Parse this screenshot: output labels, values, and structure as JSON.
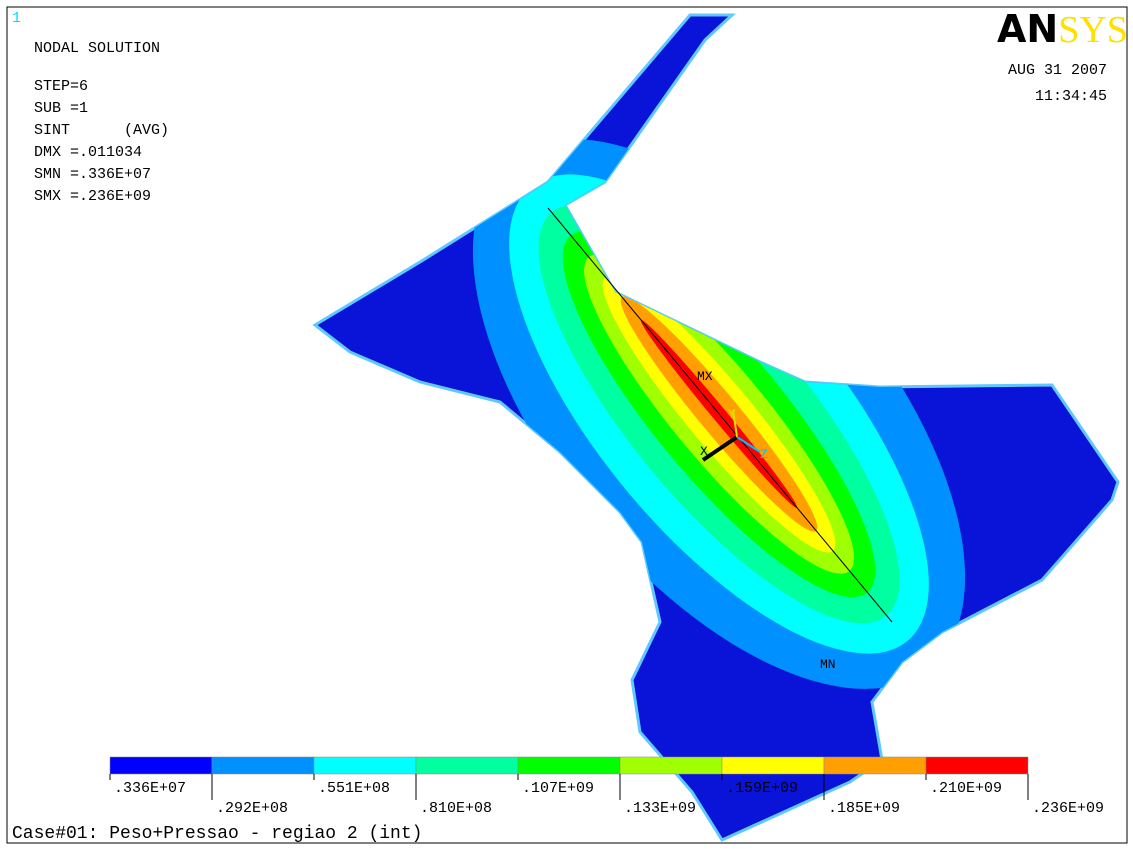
{
  "window_number": "1",
  "header": {
    "title": "NODAL SOLUTION",
    "lines": [
      "STEP=6",
      "SUB =1",
      "SINT      (AVG)",
      "DMX =.011034",
      "SMN =.336E+07",
      "SMX =.236E+09"
    ]
  },
  "logo": {
    "prefix": "AN",
    "suffix": "SYS"
  },
  "date": "AUG 31 2007",
  "time": "11:34:45",
  "markers": {
    "max": "MX",
    "min": "MN"
  },
  "triad": {
    "x": "X",
    "y": "Y",
    "z": "Z"
  },
  "legend": {
    "colors": [
      "#0000ff",
      "#0090ff",
      "#00ffff",
      "#00ffa0",
      "#00ff00",
      "#a0ff00",
      "#ffff00",
      "#ffa000",
      "#ff0000"
    ],
    "labels": [
      ".336E+07",
      ".292E+08",
      ".551E+08",
      ".810E+08",
      ".107E+09",
      ".133E+09",
      ".159E+09",
      ".185E+09",
      ".210E+09",
      ".236E+09"
    ]
  },
  "caption": "Case#01: Peso+Pressao - regiao 2 (int)"
}
